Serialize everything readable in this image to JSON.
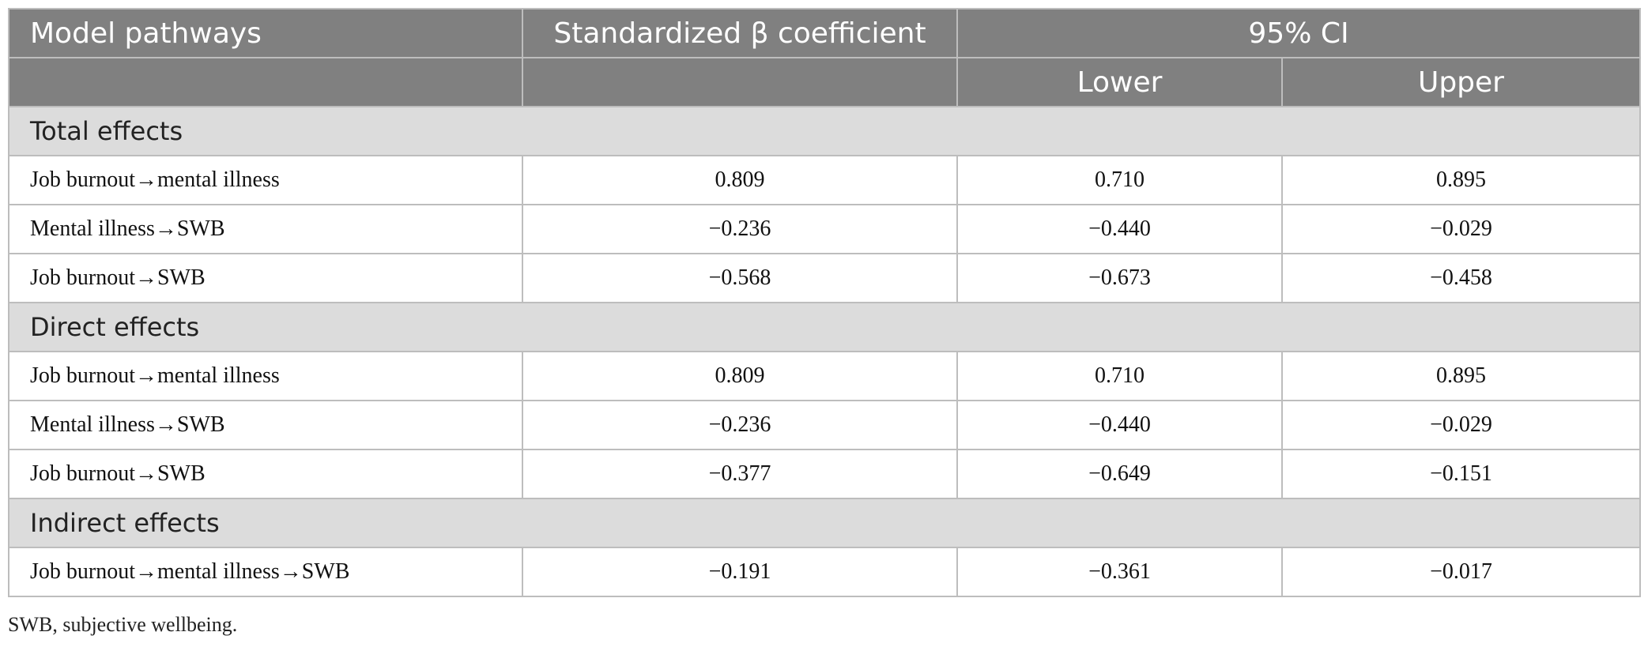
{
  "header": {
    "col1": "Model pathways",
    "col2": "Standardized β coefficient",
    "col3": "95% CI",
    "lower": "Lower",
    "upper": "Upper"
  },
  "sections": {
    "total": {
      "title": "Total effects",
      "rows": [
        {
          "pathway": "Job burnout→mental illness",
          "beta": "0.809",
          "lower": "0.710",
          "upper": "0.895"
        },
        {
          "pathway": "Mental illness→SWB",
          "beta": "−0.236",
          "lower": "−0.440",
          "upper": "−0.029"
        },
        {
          "pathway": "Job burnout→SWB",
          "beta": "−0.568",
          "lower": "−0.673",
          "upper": "−0.458"
        }
      ]
    },
    "direct": {
      "title": "Direct effects",
      "rows": [
        {
          "pathway": "Job burnout→mental illness",
          "beta": "0.809",
          "lower": "0.710",
          "upper": "0.895"
        },
        {
          "pathway": "Mental illness→SWB",
          "beta": "−0.236",
          "lower": "−0.440",
          "upper": "−0.029"
        },
        {
          "pathway": "Job burnout→SWB",
          "beta": "−0.377",
          "lower": "−0.649",
          "upper": "−0.151"
        }
      ]
    },
    "indirect": {
      "title": "Indirect effects",
      "rows": [
        {
          "pathway": "Job burnout→mental illness→SWB",
          "beta": "−0.191",
          "lower": "−0.361",
          "upper": "−0.017"
        }
      ]
    }
  },
  "footnote": "SWB, subjective wellbeing."
}
